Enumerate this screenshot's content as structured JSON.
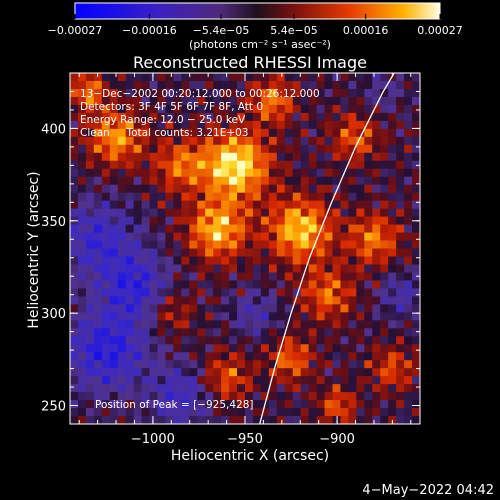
{
  "chart_data": {
    "type": "heatmap",
    "title": "Reconstructed RHESSI Image",
    "xlabel": "Heliocentric X (arcsec)",
    "ylabel": "Heliocentric Y (arcsec)",
    "xlim": [
      -1045,
      -950,
      -855
    ],
    "x_range": [
      -1045,
      -855
    ],
    "y_range": [
      240,
      430
    ],
    "x_ticks": [
      -1000,
      -950,
      -900
    ],
    "x_tick_labels": [
      "−1000",
      "−950",
      "−900"
    ],
    "y_ticks": [
      250,
      300,
      350,
      400
    ],
    "y_tick_labels": [
      "250",
      "300",
      "350",
      "400"
    ],
    "colorbar": {
      "label": "(photons cm⁻² s⁻¹ asec⁻²)",
      "range": [
        -0.00027,
        0.00027
      ],
      "ticks": [
        -0.00027,
        -0.00016,
        -5.4e-05,
        5.4e-05,
        0.00016,
        0.00027
      ],
      "tick_labels": [
        "−0.00027",
        "−0.00016",
        "−5.4e−05",
        "5.4e−05",
        "0.00016",
        "0.00027"
      ]
    },
    "annotations": [
      "13−Dec−2002 00:20:12.000 to 00:26:12.000",
      "Detectors: 3F 4F 5F 6F 7F 8F, Att 0",
      "Energy Range: 12.0 − 25.0 keV",
      "Clean     Total counts: 3.21E+03"
    ],
    "peak_label": "Position of Peak = [−925,428]",
    "peak": [
      -925,
      428
    ],
    "limb_curve": [
      [
        -942,
        240
      ],
      [
        -934,
        270
      ],
      [
        -925,
        300
      ],
      [
        -915,
        330
      ],
      [
        -903,
        360
      ],
      [
        -890,
        390
      ],
      [
        -875,
        420
      ],
      [
        -869,
        430
      ]
    ],
    "heatmap_blobs": [
      [
        -955,
        380,
        1.0,
        18
      ],
      [
        -965,
        345,
        0.8,
        16
      ],
      [
        -920,
        345,
        0.85,
        17
      ],
      [
        -905,
        310,
        0.55,
        14
      ],
      [
        -880,
        340,
        0.6,
        14
      ],
      [
        -1020,
        395,
        0.7,
        15
      ],
      [
        -985,
        380,
        0.55,
        14
      ],
      [
        -1035,
        420,
        0.6,
        10
      ],
      [
        -935,
        415,
        0.6,
        12
      ],
      [
        -890,
        395,
        0.5,
        13
      ],
      [
        -960,
        265,
        0.5,
        13
      ],
      [
        -925,
        275,
        0.55,
        12
      ],
      [
        -870,
        270,
        0.45,
        12
      ],
      [
        -990,
        300,
        0.35,
        12
      ],
      [
        -900,
        250,
        0.5,
        10
      ],
      [
        -1030,
        340,
        -0.55,
        20
      ],
      [
        -1025,
        280,
        -0.7,
        22
      ],
      [
        -985,
        255,
        -0.5,
        16
      ],
      [
        -1010,
        315,
        -0.6,
        18
      ],
      [
        -945,
        300,
        -0.35,
        12
      ],
      [
        -865,
        310,
        -0.35,
        12
      ],
      [
        -875,
        420,
        -0.2,
        12
      ]
    ]
  },
  "footer_date": "4−May−2022 04:42"
}
